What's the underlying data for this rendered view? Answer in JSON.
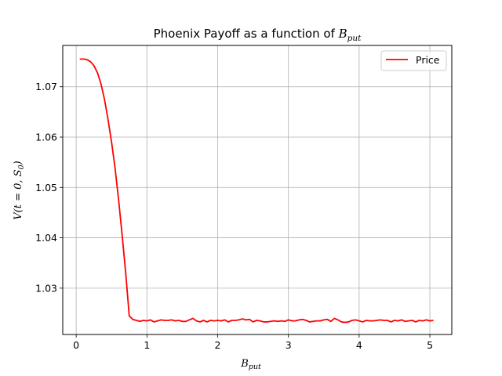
{
  "chart_data": {
    "type": "line",
    "title": "Phoenix Payoff as a function of",
    "title_math": "B",
    "title_math_sub": "put",
    "xlabel": "B",
    "xlabel_sub": "put",
    "ylabel": "V(t = 0, S",
    "ylabel_sub": "0",
    "ylabel_end": ")",
    "xlim": [
      -0.19,
      5.31
    ],
    "ylim": [
      1.0208,
      1.0782
    ],
    "xticks": [
      0,
      1,
      2,
      3,
      4,
      5
    ],
    "xtick_labels": [
      "0",
      "1",
      "2",
      "3",
      "4",
      "5"
    ],
    "yticks": [
      1.03,
      1.04,
      1.05,
      1.06,
      1.07
    ],
    "ytick_labels": [
      "1.03",
      "1.04",
      "1.05",
      "1.06",
      "1.07"
    ],
    "grid": true,
    "legend_position": "top-right",
    "series": [
      {
        "name": "Price",
        "color": "#ff0000",
        "x": [
          0.05,
          0.1,
          0.15,
          0.2,
          0.25,
          0.3,
          0.35,
          0.4,
          0.45,
          0.5,
          0.55,
          0.6,
          0.65,
          0.7,
          0.75,
          0.8,
          0.85,
          0.9,
          0.95,
          1.0,
          1.05,
          1.1,
          1.15,
          1.2,
          1.25,
          1.3,
          1.35,
          1.4,
          1.45,
          1.5,
          1.55,
          1.6,
          1.65,
          1.7,
          1.75,
          1.8,
          1.85,
          1.9,
          1.95,
          2.0,
          2.05,
          2.1,
          2.15,
          2.2,
          2.25,
          2.3,
          2.35,
          2.4,
          2.45,
          2.5,
          2.55,
          2.6,
          2.65,
          2.7,
          2.75,
          2.8,
          2.85,
          2.9,
          2.95,
          3.0,
          3.05,
          3.1,
          3.15,
          3.2,
          3.25,
          3.3,
          3.35,
          3.4,
          3.45,
          3.5,
          3.55,
          3.6,
          3.65,
          3.7,
          3.75,
          3.8,
          3.85,
          3.9,
          3.95,
          4.0,
          4.05,
          4.1,
          4.15,
          4.2,
          4.25,
          4.3,
          4.35,
          4.4,
          4.45,
          4.5,
          4.55,
          4.6,
          4.65,
          4.7,
          4.75,
          4.8,
          4.85,
          4.9,
          4.95,
          5.0,
          5.05
        ],
        "y": [
          1.0755,
          1.0755,
          1.0754,
          1.075,
          1.0742,
          1.0728,
          1.0706,
          1.0675,
          1.0635,
          1.059,
          1.0538,
          1.0475,
          1.0405,
          1.033,
          1.0245,
          1.0238,
          1.0236,
          1.0234,
          1.0236,
          1.0235,
          1.0237,
          1.0233,
          1.0235,
          1.0237,
          1.0236,
          1.0236,
          1.0237,
          1.0235,
          1.0236,
          1.0234,
          1.0234,
          1.0237,
          1.024,
          1.0235,
          1.0233,
          1.0236,
          1.0233,
          1.0236,
          1.0235,
          1.0236,
          1.0235,
          1.0237,
          1.0233,
          1.0236,
          1.0236,
          1.0237,
          1.0239,
          1.0237,
          1.0238,
          1.0233,
          1.0236,
          1.0235,
          1.0233,
          1.0233,
          1.0234,
          1.0235,
          1.0234,
          1.0235,
          1.0234,
          1.0237,
          1.0235,
          1.0235,
          1.0237,
          1.0238,
          1.0236,
          1.0233,
          1.0234,
          1.0235,
          1.0235,
          1.0237,
          1.0238,
          1.0234,
          1.024,
          1.0237,
          1.0233,
          1.0232,
          1.0233,
          1.0236,
          1.0237,
          1.0235,
          1.0233,
          1.0236,
          1.0235,
          1.0235,
          1.0236,
          1.0237,
          1.0236,
          1.0236,
          1.0233,
          1.0236,
          1.0235,
          1.0237,
          1.0234,
          1.0235,
          1.0236,
          1.0233,
          1.0236,
          1.0235,
          1.0237,
          1.0235,
          1.0236
        ]
      }
    ]
  }
}
